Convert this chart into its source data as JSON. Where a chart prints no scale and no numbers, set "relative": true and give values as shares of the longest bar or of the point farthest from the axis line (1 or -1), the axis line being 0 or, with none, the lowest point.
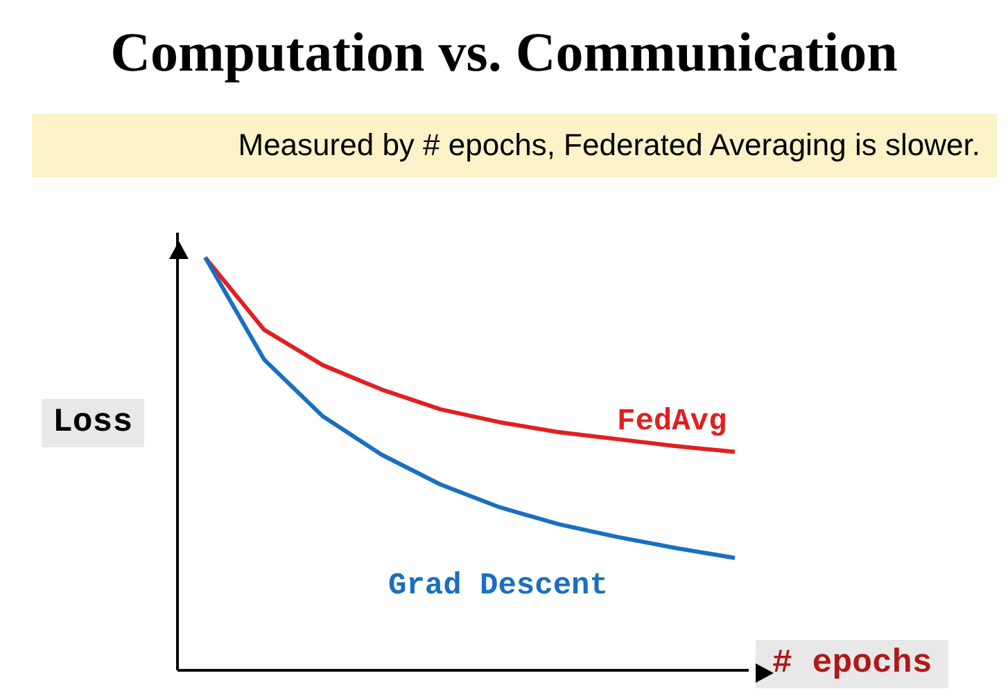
{
  "chart_data": {
    "type": "line",
    "title": "Computation vs. Communication",
    "subtitle": "Measured by # epochs, Federated Averaging is slower.",
    "xlabel": "# epochs",
    "ylabel": "Loss",
    "relative": true,
    "marker": "none",
    "line_style": "solid",
    "categories": [
      null,
      null,
      null,
      null,
      null,
      null,
      null,
      null,
      null,
      null
    ],
    "series": [
      {
        "name": "FedAvg",
        "color": "#e02020",
        "values": [
          1,
          0.825,
          0.739,
          0.68,
          0.632,
          0.601,
          0.577,
          0.56,
          0.543,
          0.529
        ]
      },
      {
        "name": "Grad Descent",
        "color": "#1a6fc0",
        "values": [
          1,
          0.753,
          0.615,
          0.522,
          0.45,
          0.395,
          0.354,
          0.323,
          0.296,
          0.272
        ]
      }
    ]
  }
}
